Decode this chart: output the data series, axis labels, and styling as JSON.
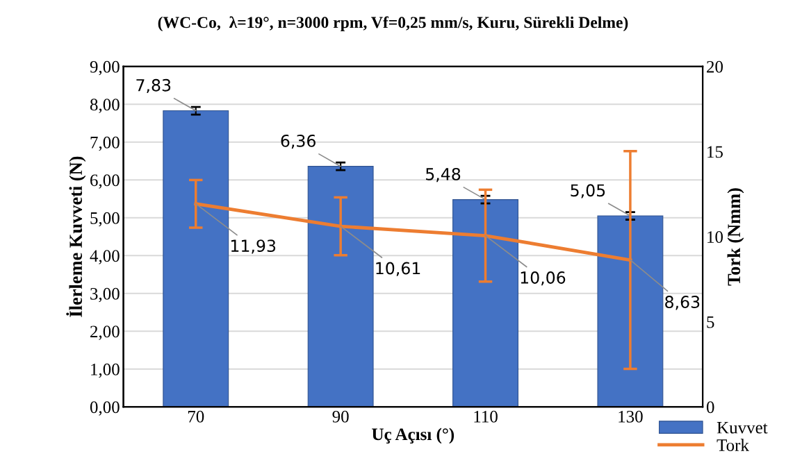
{
  "chart_data": {
    "type": "bar",
    "title": "(WC-Co,  λ=19°, n=3000 rpm, Vf=0,25 mm/s, Kuru, Sürekli Delme)",
    "xlabel": "Uç Açısı (°)",
    "ylabel": "İlerleme Kuvveti (N)",
    "y2label": "Tork (Nmm)",
    "categories": [
      "70",
      "90",
      "110",
      "130"
    ],
    "series": [
      {
        "name": "Kuvvet",
        "color": "#4472c4",
        "values": [
          7.83,
          6.36,
          5.48,
          5.05
        ],
        "errors": [
          0.1,
          0.1,
          0.1,
          0.1
        ],
        "value_labels": [
          "7,83",
          "6,36",
          "5,48",
          "5,05"
        ]
      },
      {
        "name": "Tork",
        "type": "line",
        "axis": "y2",
        "color": "#ed7d31",
        "values": [
          11.93,
          10.61,
          10.06,
          8.63
        ],
        "errors": [
          1.4,
          1.7,
          2.7,
          6.4
        ],
        "value_labels": [
          "11,93",
          "10,61",
          "10,06",
          "8,63"
        ]
      }
    ],
    "ylim": [
      0,
      9
    ],
    "yticks": [
      {
        "value": 0,
        "label": "0,00"
      },
      {
        "value": 1,
        "label": "1,00"
      },
      {
        "value": 2,
        "label": "2,00"
      },
      {
        "value": 3,
        "label": "3,00"
      },
      {
        "value": 4,
        "label": "4,00"
      },
      {
        "value": 5,
        "label": "5,00"
      },
      {
        "value": 6,
        "label": "6,00"
      },
      {
        "value": 7,
        "label": "7,00"
      },
      {
        "value": 8,
        "label": "8,00"
      },
      {
        "value": 9,
        "label": "9,00"
      }
    ],
    "y2lim": [
      0,
      20
    ],
    "y2ticks": [
      0,
      5,
      10,
      15,
      20
    ],
    "grid": "y",
    "legend": "bottom right",
    "marker": "none",
    "line_style": "solid"
  }
}
